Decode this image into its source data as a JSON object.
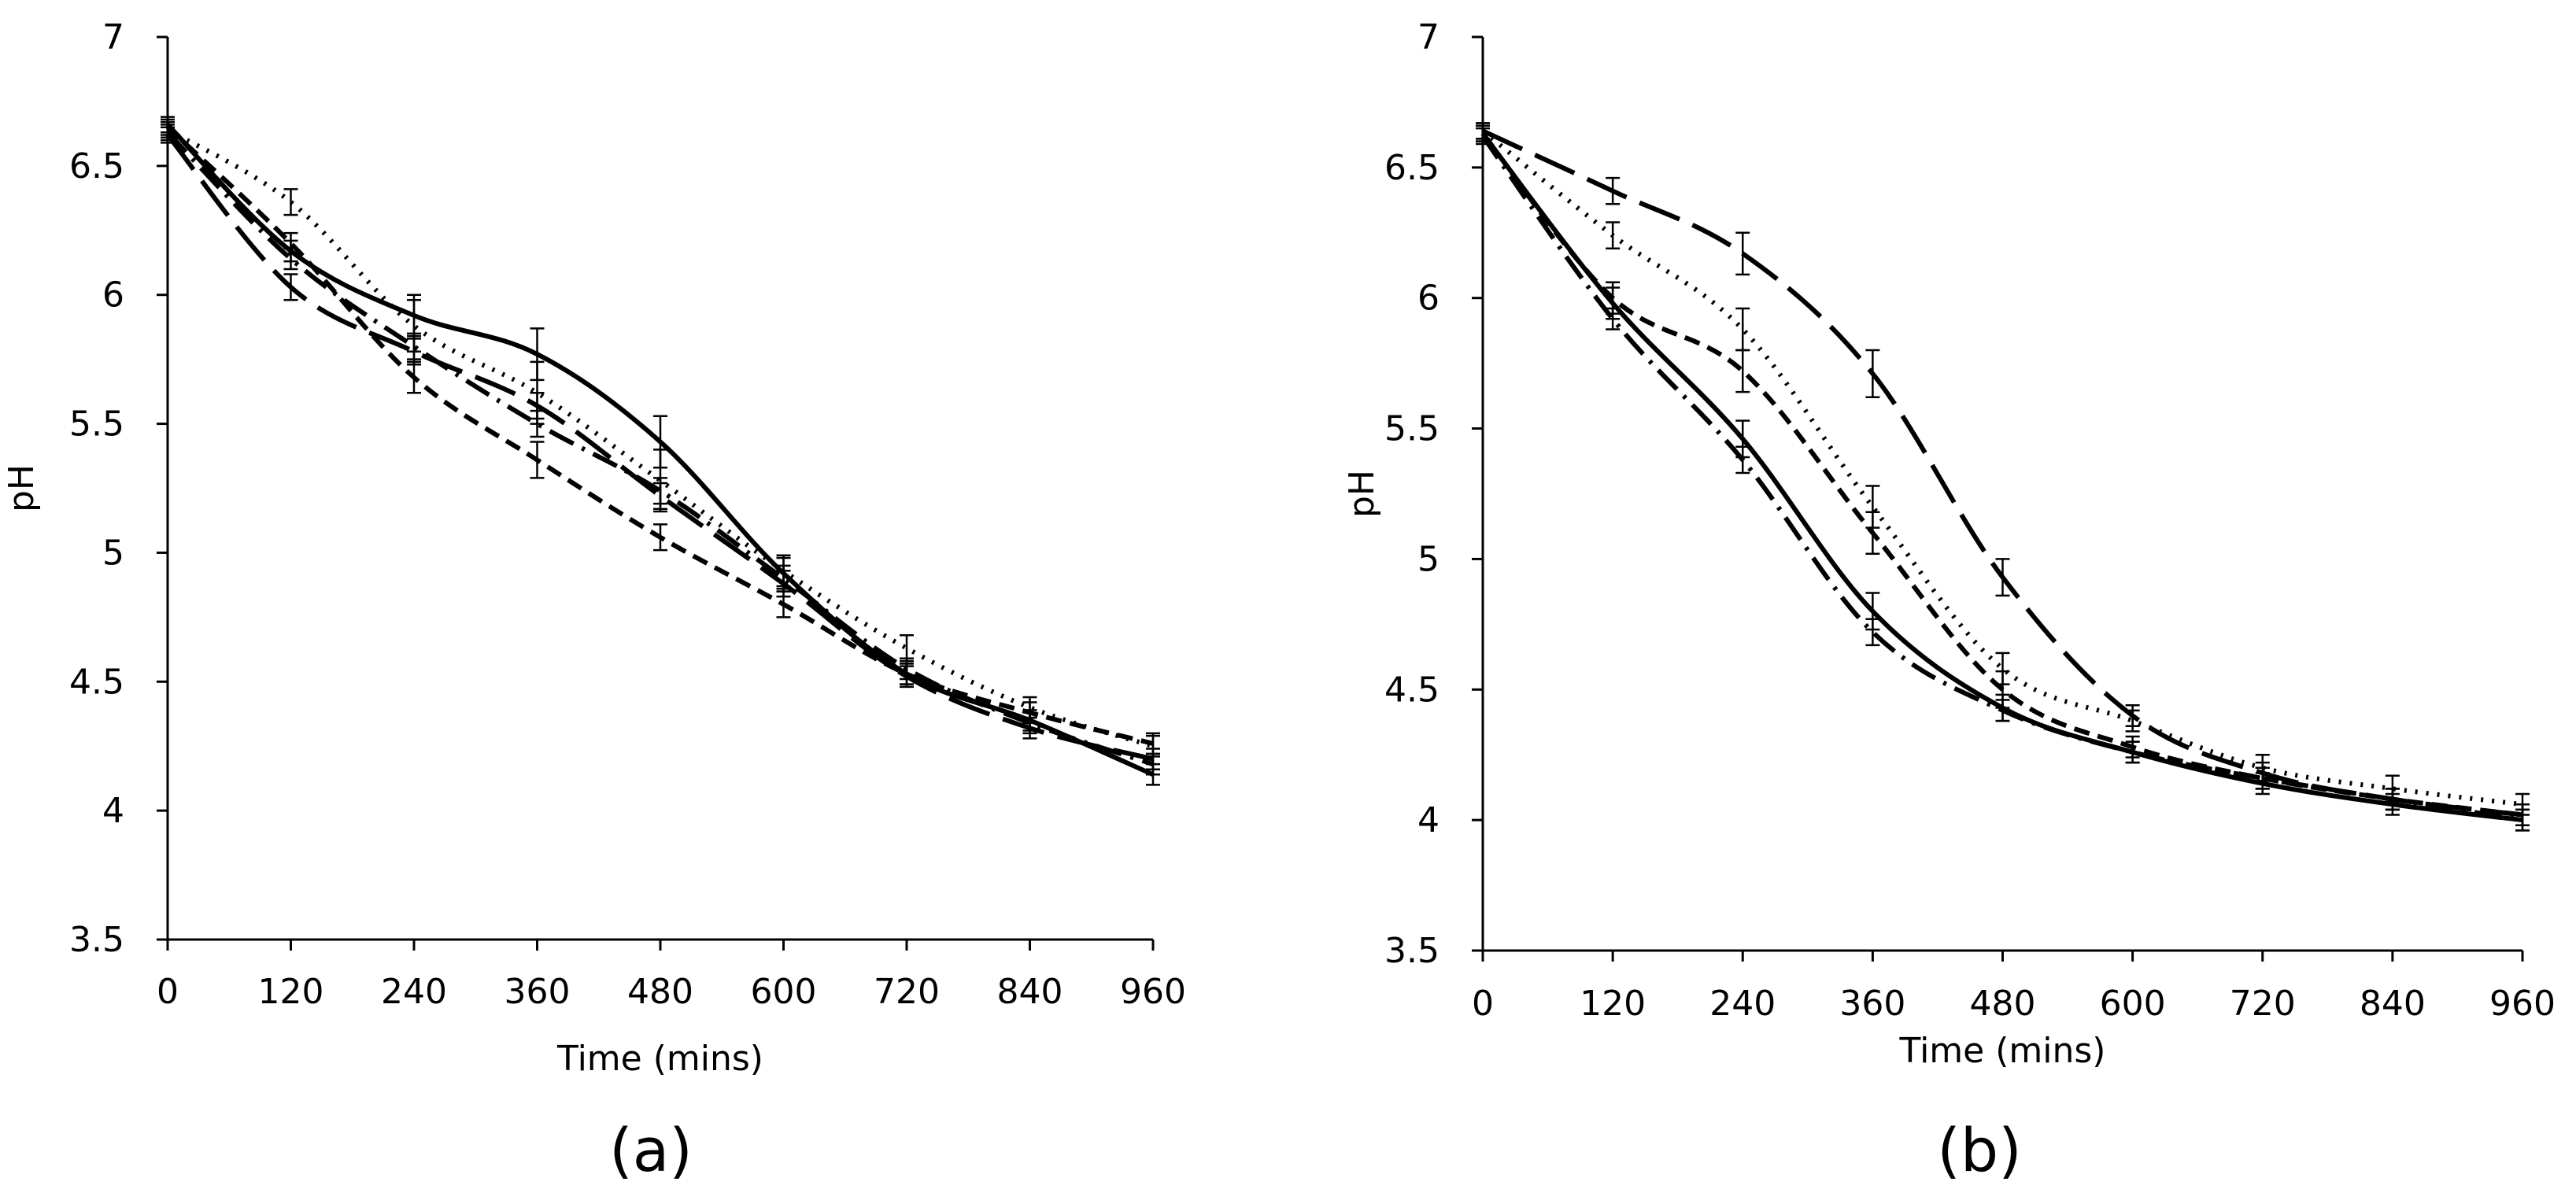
{
  "chart_data": [
    {
      "type": "line",
      "panel_label": "(a)",
      "title": "",
      "xlabel": "Time (mins)",
      "ylabel": "pH",
      "xlim": [
        0,
        960
      ],
      "ylim": [
        3.5,
        7
      ],
      "x_ticks": [
        "0",
        "120",
        "240",
        "360",
        "480",
        "600",
        "720",
        "840",
        "960"
      ],
      "y_ticks": [
        "3.5",
        "4",
        "4.5",
        "5",
        "5.5",
        "6",
        "6.5",
        "7"
      ],
      "grid": false,
      "legend": "none",
      "x": [
        0,
        120,
        240,
        360,
        480,
        600,
        720,
        840,
        960
      ],
      "series": [
        {
          "name": "solid",
          "style": "solid",
          "values": [
            6.66,
            6.17,
            5.92,
            5.77,
            5.43,
            4.92,
            4.53,
            4.35,
            4.14
          ],
          "errors": [
            0.03,
            0.04,
            0.08,
            0.1,
            0.1,
            0.06,
            0.04,
            0.04,
            0.04
          ]
        },
        {
          "name": "dotted",
          "style": "dotted",
          "values": [
            6.64,
            6.36,
            5.88,
            5.62,
            5.28,
            4.93,
            4.63,
            4.4,
            4.25
          ],
          "errors": [
            0.03,
            0.05,
            0.1,
            0.12,
            0.12,
            0.06,
            0.05,
            0.04,
            0.04
          ]
        },
        {
          "name": "short-dash",
          "style": "short-dash",
          "values": [
            6.65,
            6.2,
            5.68,
            5.36,
            5.06,
            4.8,
            4.53,
            4.38,
            4.26
          ],
          "errors": [
            0.03,
            0.04,
            0.06,
            0.07,
            0.05,
            0.05,
            0.04,
            0.04,
            0.04
          ]
        },
        {
          "name": "long-dash",
          "style": "long-dash",
          "values": [
            6.62,
            6.03,
            5.78,
            5.57,
            5.22,
            4.88,
            4.52,
            4.32,
            4.2
          ],
          "errors": [
            0.03,
            0.05,
            0.05,
            0.05,
            0.05,
            0.05,
            0.04,
            0.04,
            0.04
          ]
        },
        {
          "name": "dash-dot",
          "style": "dash-dot",
          "values": [
            6.63,
            6.14,
            5.8,
            5.5,
            5.24,
            4.9,
            4.55,
            4.34,
            4.18
          ],
          "errors": [
            0.03,
            0.04,
            0.05,
            0.05,
            0.05,
            0.05,
            0.04,
            0.04,
            0.04
          ]
        }
      ]
    },
    {
      "type": "line",
      "panel_label": "(b)",
      "title": "",
      "xlabel": "Time (mins)",
      "ylabel": "pH",
      "xlim": [
        0,
        960
      ],
      "ylim": [
        3.5,
        7
      ],
      "x_ticks": [
        "0",
        "120",
        "240",
        "360",
        "480",
        "600",
        "720",
        "840",
        "960"
      ],
      "y_ticks": [
        "3.5",
        "4",
        "4.5",
        "5",
        "5.5",
        "6",
        "6.5",
        "7"
      ],
      "grid": false,
      "legend": "none",
      "x": [
        0,
        120,
        240,
        360,
        480,
        600,
        720,
        840,
        960
      ],
      "series": [
        {
          "name": "solid",
          "style": "solid",
          "values": [
            6.63,
            5.98,
            5.46,
            4.8,
            4.43,
            4.26,
            4.14,
            4.06,
            4.0
          ],
          "errors": [
            0.03,
            0.06,
            0.07,
            0.07,
            0.05,
            0.04,
            0.04,
            0.04,
            0.04
          ]
        },
        {
          "name": "dotted",
          "style": "dotted",
          "values": [
            6.64,
            6.24,
            5.88,
            5.2,
            4.58,
            4.38,
            4.2,
            4.12,
            4.06
          ],
          "errors": [
            0.03,
            0.05,
            0.08,
            0.08,
            0.06,
            0.04,
            0.05,
            0.05,
            0.04
          ]
        },
        {
          "name": "short-dash",
          "style": "short-dash",
          "values": [
            6.63,
            6.0,
            5.72,
            5.1,
            4.5,
            4.28,
            4.16,
            4.08,
            4.02
          ],
          "errors": [
            0.03,
            0.06,
            0.08,
            0.08,
            0.07,
            0.04,
            0.04,
            0.04,
            0.04
          ]
        },
        {
          "name": "long-dash",
          "style": "long-dash",
          "values": [
            6.64,
            6.41,
            6.17,
            5.71,
            4.93,
            4.4,
            4.18,
            4.08,
            4.02
          ],
          "errors": [
            0.03,
            0.05,
            0.08,
            0.09,
            0.07,
            0.04,
            0.04,
            0.04,
            0.04
          ]
        },
        {
          "name": "dash-dot",
          "style": "dash-dot",
          "values": [
            6.62,
            5.92,
            5.38,
            4.72,
            4.42,
            4.26,
            4.16,
            4.08,
            4.0
          ],
          "errors": [
            0.03,
            0.04,
            0.05,
            0.05,
            0.04,
            0.04,
            0.04,
            0.04,
            0.04
          ]
        }
      ]
    }
  ]
}
